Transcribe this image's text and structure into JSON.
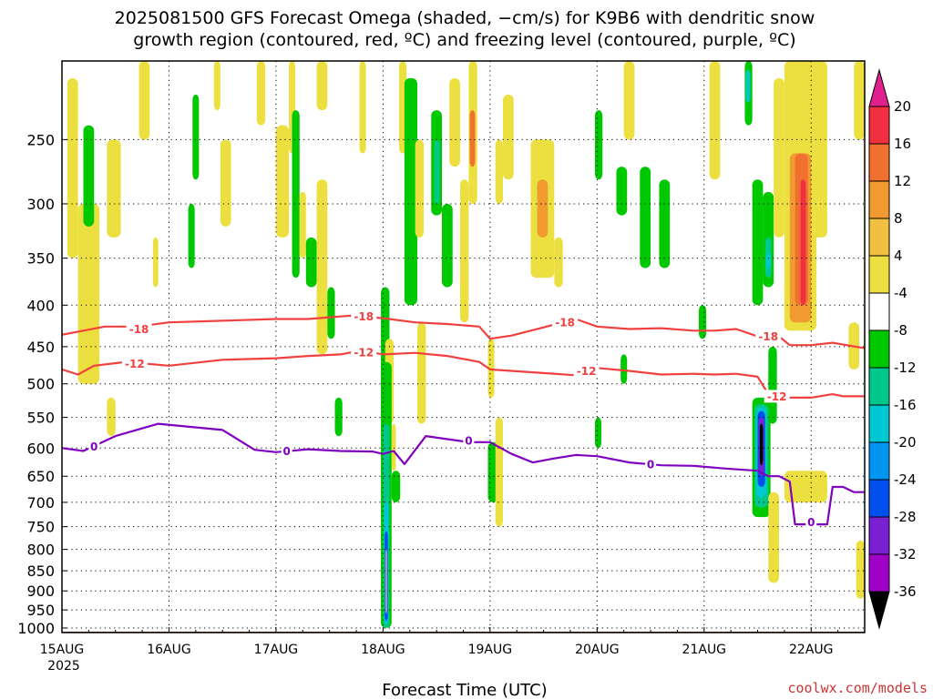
{
  "chart_data": {
    "type": "heatmap",
    "title_lines": [
      "2025081500 GFS Forecast Omega (shaded, −cm/s) for K9B6 with dendritic snow",
      "growth region (contoured, red, ºC) and freezing level (contoured, purple, ºC)"
    ],
    "xlabel": "Forecast Time (UTC)",
    "x_ticks": [
      "15AUG",
      "16AUG",
      "17AUG",
      "18AUG",
      "19AUG",
      "20AUG",
      "21AUG",
      "22AUG"
    ],
    "x_year_label": "2025",
    "xlim": [
      0,
      7.5
    ],
    "y_ticks": [
      250,
      300,
      350,
      400,
      450,
      500,
      550,
      600,
      650,
      700,
      750,
      800,
      850,
      900,
      950,
      1000
    ],
    "ylim": [
      1013,
      200
    ],
    "y_scale": "log",
    "grid": true,
    "credit": "coolwx.com/models",
    "colorbar": {
      "ticks": [
        "20",
        "16",
        "12",
        "8",
        "4",
        "-4",
        "-8",
        "-12",
        "-16",
        "-20",
        "-24",
        "-28",
        "-32",
        "-36"
      ],
      "colors": [
        "#f03040",
        "#f07030",
        "#f09a30",
        "#f0c040",
        "#ece040",
        "#ffffff",
        "#00c800",
        "#00c88c",
        "#00c8d2",
        "#0096f0",
        "#0050f0",
        "#7820d2",
        "#a000c8",
        "#a0a0a0",
        "#000000"
      ]
    },
    "surface_color": "#a0522d",
    "shading": [
      {
        "x0": 0.05,
        "x1": 0.15,
        "p0": 210,
        "p1": 350,
        "level": 4
      },
      {
        "x0": 0.15,
        "x1": 0.35,
        "p0": 300,
        "p1": 500,
        "level": 4
      },
      {
        "x0": 0.2,
        "x1": 0.3,
        "p0": 240,
        "p1": 320,
        "level": -8
      },
      {
        "x0": 0.42,
        "x1": 0.55,
        "p0": 250,
        "p1": 330,
        "level": 4
      },
      {
        "x0": 0.42,
        "x1": 0.5,
        "p0": 520,
        "p1": 580,
        "level": 4
      },
      {
        "x0": 0.72,
        "x1": 0.82,
        "p0": 200,
        "p1": 250,
        "level": 4
      },
      {
        "x0": 0.85,
        "x1": 0.9,
        "p0": 330,
        "p1": 380,
        "level": 4
      },
      {
        "x0": 1.18,
        "x1": 1.24,
        "p0": 300,
        "p1": 360,
        "level": -8
      },
      {
        "x0": 1.22,
        "x1": 1.28,
        "p0": 220,
        "p1": 280,
        "level": -8
      },
      {
        "x0": 1.42,
        "x1": 1.48,
        "p0": 200,
        "p1": 230,
        "level": 4
      },
      {
        "x0": 1.48,
        "x1": 1.58,
        "p0": 250,
        "p1": 320,
        "level": 4
      },
      {
        "x0": 1.82,
        "x1": 1.9,
        "p0": 200,
        "p1": 240,
        "level": 4
      },
      {
        "x0": 2.0,
        "x1": 2.12,
        "p0": 240,
        "p1": 330,
        "level": 4
      },
      {
        "x0": 2.12,
        "x1": 2.18,
        "p0": 200,
        "p1": 260,
        "level": 4
      },
      {
        "x0": 2.15,
        "x1": 2.22,
        "p0": 230,
        "p1": 370,
        "level": -8
      },
      {
        "x0": 2.22,
        "x1": 2.28,
        "p0": 290,
        "p1": 350,
        "level": 4
      },
      {
        "x0": 2.28,
        "x1": 2.38,
        "p0": 330,
        "p1": 380,
        "level": -8
      },
      {
        "x0": 2.38,
        "x1": 2.48,
        "p0": 200,
        "p1": 230,
        "level": 4
      },
      {
        "x0": 2.38,
        "x1": 2.48,
        "p0": 280,
        "p1": 460,
        "level": 4
      },
      {
        "x0": 2.48,
        "x1": 2.55,
        "p0": 380,
        "p1": 440,
        "level": -8
      },
      {
        "x0": 2.55,
        "x1": 2.62,
        "p0": 520,
        "p1": 580,
        "level": -8
      },
      {
        "x0": 2.78,
        "x1": 2.84,
        "p0": 200,
        "p1": 260,
        "level": 4
      },
      {
        "x0": 2.98,
        "x1": 3.06,
        "p0": 380,
        "p1": 560,
        "level": -8
      },
      {
        "x0": 3.02,
        "x1": 3.1,
        "p0": 440,
        "p1": 560,
        "level": 4
      },
      {
        "x0": 3.15,
        "x1": 3.22,
        "p0": 200,
        "p1": 260,
        "level": 4
      },
      {
        "x0": 3.2,
        "x1": 3.32,
        "p0": 210,
        "p1": 400,
        "level": -8
      },
      {
        "x0": 3.3,
        "x1": 3.38,
        "p0": 250,
        "p1": 330,
        "level": 4
      },
      {
        "x0": 3.32,
        "x1": 3.4,
        "p0": 420,
        "p1": 560,
        "level": 4
      },
      {
        "x0": 2.98,
        "x1": 3.08,
        "p0": 470,
        "p1": 1000,
        "level": -8
      },
      {
        "x0": 3.0,
        "x1": 3.06,
        "p0": 560,
        "p1": 1000,
        "level": -12
      },
      {
        "x0": 3.01,
        "x1": 3.05,
        "p0": 700,
        "p1": 990,
        "level": -16
      },
      {
        "x0": 3.015,
        "x1": 3.045,
        "p0": 760,
        "p1": 980,
        "level": -24
      },
      {
        "x0": 3.02,
        "x1": 3.04,
        "p0": 800,
        "p1": 960,
        "level": -32
      },
      {
        "x0": 3.08,
        "x1": 3.16,
        "p0": 640,
        "p1": 700,
        "level": -8
      },
      {
        "x0": 3.08,
        "x1": 3.12,
        "p0": 560,
        "p1": 640,
        "level": 4
      },
      {
        "x0": 3.45,
        "x1": 3.55,
        "p0": 230,
        "p1": 310,
        "level": -8
      },
      {
        "x0": 3.48,
        "x1": 3.53,
        "p0": 250,
        "p1": 300,
        "level": -12
      },
      {
        "x0": 3.55,
        "x1": 3.65,
        "p0": 300,
        "p1": 380,
        "level": -8
      },
      {
        "x0": 3.72,
        "x1": 3.8,
        "p0": 280,
        "p1": 420,
        "level": 4
      },
      {
        "x0": 3.62,
        "x1": 3.72,
        "p0": 210,
        "p1": 270,
        "level": 4
      },
      {
        "x0": 3.8,
        "x1": 3.88,
        "p0": 200,
        "p1": 300,
        "level": 4
      },
      {
        "x0": 3.81,
        "x1": 3.86,
        "p0": 230,
        "p1": 270,
        "level": 12
      },
      {
        "x0": 3.98,
        "x1": 4.08,
        "p0": 590,
        "p1": 700,
        "level": -8
      },
      {
        "x0": 4.05,
        "x1": 4.12,
        "p0": 550,
        "p1": 750,
        "level": 4
      },
      {
        "x0": 3.98,
        "x1": 4.04,
        "p0": 440,
        "p1": 520,
        "level": 4
      },
      {
        "x0": 4.05,
        "x1": 4.12,
        "p0": 250,
        "p1": 300,
        "level": 4
      },
      {
        "x0": 4.12,
        "x1": 4.22,
        "p0": 220,
        "p1": 280,
        "level": 4
      },
      {
        "x0": 4.38,
        "x1": 4.6,
        "p0": 250,
        "p1": 370,
        "level": 4
      },
      {
        "x0": 4.44,
        "x1": 4.54,
        "p0": 280,
        "p1": 330,
        "level": 8
      },
      {
        "x0": 4.6,
        "x1": 4.68,
        "p0": 330,
        "p1": 380,
        "level": 4
      },
      {
        "x0": 4.98,
        "x1": 5.05,
        "p0": 230,
        "p1": 280,
        "level": -8
      },
      {
        "x0": 5.18,
        "x1": 5.28,
        "p0": 270,
        "p1": 310,
        "level": -8
      },
      {
        "x0": 5.22,
        "x1": 5.28,
        "p0": 460,
        "p1": 500,
        "level": -8
      },
      {
        "x0": 4.98,
        "x1": 5.04,
        "p0": 550,
        "p1": 600,
        "level": -8
      },
      {
        "x0": 5.25,
        "x1": 5.35,
        "p0": 200,
        "p1": 250,
        "level": 4
      },
      {
        "x0": 5.4,
        "x1": 5.5,
        "p0": 270,
        "p1": 360,
        "level": -8
      },
      {
        "x0": 5.58,
        "x1": 5.68,
        "p0": 280,
        "p1": 360,
        "level": -8
      },
      {
        "x0": 5.95,
        "x1": 6.02,
        "p0": 400,
        "p1": 440,
        "level": -8
      },
      {
        "x0": 6.05,
        "x1": 6.15,
        "p0": 200,
        "p1": 280,
        "level": 4
      },
      {
        "x0": 6.38,
        "x1": 6.45,
        "p0": 200,
        "p1": 240,
        "level": -8
      },
      {
        "x0": 6.39,
        "x1": 6.43,
        "p0": 205,
        "p1": 225,
        "level": -16
      },
      {
        "x0": 6.45,
        "x1": 6.55,
        "p0": 280,
        "p1": 400,
        "level": -8
      },
      {
        "x0": 6.55,
        "x1": 6.65,
        "p0": 290,
        "p1": 380,
        "level": -8
      },
      {
        "x0": 6.57,
        "x1": 6.63,
        "p0": 330,
        "p1": 370,
        "level": -12
      },
      {
        "x0": 6.58,
        "x1": 6.62,
        "p0": 345,
        "p1": 360,
        "level": -16
      },
      {
        "x0": 6.65,
        "x1": 6.75,
        "p0": 210,
        "p1": 330,
        "level": 4
      },
      {
        "x0": 6.6,
        "x1": 6.68,
        "p0": 450,
        "p1": 560,
        "level": -8
      },
      {
        "x0": 6.45,
        "x1": 6.62,
        "p0": 520,
        "p1": 730,
        "level": -8
      },
      {
        "x0": 6.47,
        "x1": 6.6,
        "p0": 530,
        "p1": 710,
        "level": -12
      },
      {
        "x0": 6.49,
        "x1": 6.58,
        "p0": 535,
        "p1": 690,
        "level": -16
      },
      {
        "x0": 6.5,
        "x1": 6.57,
        "p0": 540,
        "p1": 670,
        "level": -24
      },
      {
        "x0": 6.51,
        "x1": 6.56,
        "p0": 550,
        "p1": 650,
        "level": -28
      },
      {
        "x0": 6.52,
        "x1": 6.55,
        "p0": 560,
        "p1": 630,
        "level": -36
      },
      {
        "x0": 6.6,
        "x1": 6.7,
        "p0": 680,
        "p1": 880,
        "level": 4
      },
      {
        "x0": 6.75,
        "x1": 7.05,
        "p0": 200,
        "p1": 430,
        "level": 4
      },
      {
        "x0": 6.8,
        "x1": 7.0,
        "p0": 260,
        "p1": 420,
        "level": 8
      },
      {
        "x0": 6.85,
        "x1": 6.97,
        "p0": 260,
        "p1": 400,
        "level": 12
      },
      {
        "x0": 6.9,
        "x1": 6.95,
        "p0": 280,
        "p1": 400,
        "level": 16
      },
      {
        "x0": 7.0,
        "x1": 7.15,
        "p0": 200,
        "p1": 330,
        "level": 4
      },
      {
        "x0": 6.75,
        "x1": 7.15,
        "p0": 640,
        "p1": 700,
        "level": 4
      },
      {
        "x0": 7.35,
        "x1": 7.45,
        "p0": 420,
        "p1": 480,
        "level": 4
      },
      {
        "x0": 7.4,
        "x1": 7.5,
        "p0": 200,
        "p1": 250,
        "level": 4
      },
      {
        "x0": 7.42,
        "x1": 7.5,
        "p0": 780,
        "p1": 920,
        "level": 4
      }
    ],
    "contours": [
      {
        "name": "-18",
        "color": "#f04040",
        "x": [
          0,
          0.2,
          0.4,
          0.7,
          1.0,
          1.5,
          2.0,
          2.3,
          2.5,
          2.7,
          3.0,
          3.3,
          3.6,
          3.9,
          4.0,
          4.2,
          4.5,
          4.8,
          5.0,
          5.3,
          5.6,
          5.9,
          6.1,
          6.3,
          6.5,
          6.7,
          6.8,
          6.9,
          7.0,
          7.2,
          7.5
        ],
        "y": [
          435,
          430,
          425,
          425,
          420,
          418,
          416,
          416,
          414,
          412,
          415,
          420,
          422,
          425,
          440,
          436,
          426,
          416,
          425,
          428,
          427,
          430,
          430,
          428,
          437,
          437,
          448,
          448,
          448,
          445,
          452
        ]
      },
      {
        "name": "-12",
        "color": "#f04040",
        "x": [
          0,
          0.15,
          0.3,
          0.6,
          1.0,
          1.5,
          2.0,
          2.3,
          2.6,
          2.8,
          3.0,
          3.3,
          3.6,
          3.9,
          4.0,
          4.2,
          4.5,
          4.8,
          5.0,
          5.3,
          5.6,
          5.9,
          6.1,
          6.3,
          6.5,
          6.6,
          6.7,
          6.8,
          7.0,
          7.2,
          7.3,
          7.5
        ],
        "y": [
          480,
          487,
          475,
          470,
          475,
          467,
          465,
          462,
          460,
          455,
          460,
          458,
          462,
          470,
          480,
          482,
          485,
          488,
          478,
          482,
          487,
          486,
          487,
          486,
          490,
          515,
          515,
          520,
          520,
          515,
          518,
          518
        ]
      },
      {
        "name": "0",
        "color": "#8000c0",
        "x": [
          0,
          0.2,
          0.5,
          0.9,
          1.2,
          1.5,
          1.8,
          2.0,
          2.3,
          2.6,
          2.9,
          3.0,
          3.1,
          3.2,
          3.4,
          3.6,
          3.8,
          4.0,
          4.2,
          4.4,
          4.6,
          4.8,
          5.0,
          5.3,
          5.6,
          5.9,
          6.2,
          6.5,
          6.6,
          6.7,
          6.8,
          6.85,
          6.95,
          7.15,
          7.2,
          7.3,
          7.4,
          7.5
        ],
        "y": [
          600,
          605,
          580,
          560,
          565,
          570,
          603,
          607,
          602,
          605,
          606,
          610,
          605,
          628,
          580,
          585,
          590,
          590,
          610,
          625,
          618,
          612,
          614,
          625,
          630,
          631,
          636,
          640,
          650,
          650,
          660,
          745,
          745,
          745,
          670,
          670,
          680,
          680
        ]
      }
    ],
    "contour_labels": [
      {
        "text": "-18",
        "x": 0.72,
        "p": 428,
        "color": "#f04040"
      },
      {
        "text": "-18",
        "x": 2.82,
        "p": 413,
        "color": "#f04040"
      },
      {
        "text": "-18",
        "x": 4.7,
        "p": 420,
        "color": "#f04040"
      },
      {
        "text": "-18",
        "x": 6.6,
        "p": 437,
        "color": "#f04040"
      },
      {
        "text": "-12",
        "x": 0.68,
        "p": 472,
        "color": "#f04040"
      },
      {
        "text": "-12",
        "x": 2.82,
        "p": 457,
        "color": "#f04040"
      },
      {
        "text": "-12",
        "x": 4.9,
        "p": 482,
        "color": "#f04040"
      },
      {
        "text": "-12",
        "x": 6.68,
        "p": 518,
        "color": "#f04040"
      },
      {
        "text": "0",
        "x": 0.3,
        "p": 597,
        "color": "#8000c0"
      },
      {
        "text": "0",
        "x": 2.1,
        "p": 605,
        "color": "#8000c0"
      },
      {
        "text": "0",
        "x": 3.8,
        "p": 587,
        "color": "#8000c0"
      },
      {
        "text": "0",
        "x": 5.5,
        "p": 628,
        "color": "#8000c0"
      },
      {
        "text": "0",
        "x": 7.0,
        "p": 740,
        "color": "#8000c0"
      }
    ]
  }
}
